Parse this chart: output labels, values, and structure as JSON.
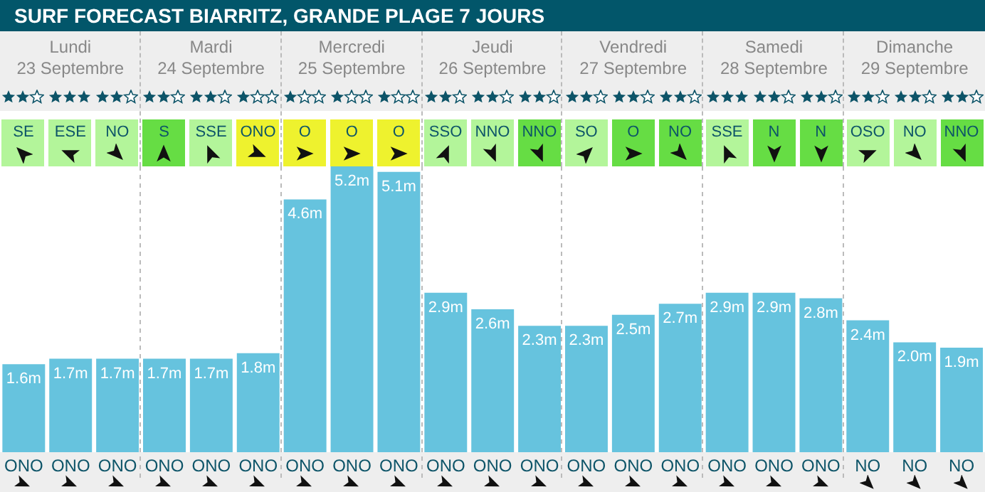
{
  "chart_data": {
    "type": "bar",
    "title": "SURF FORECAST BIARRITZ, GRANDE PLAGE 7 JOURS",
    "categories": [
      "ONO",
      "ONO",
      "ONO",
      "ONO",
      "ONO",
      "ONO",
      "ONO",
      "ONO",
      "ONO",
      "ONO",
      "ONO",
      "ONO",
      "ONO",
      "ONO",
      "ONO",
      "ONO",
      "ONO",
      "ONO",
      "NO",
      "NO",
      "NO"
    ],
    "values": [
      1.6,
      1.7,
      1.7,
      1.7,
      1.7,
      1.8,
      4.6,
      5.2,
      5.1,
      2.9,
      2.6,
      2.3,
      2.3,
      2.5,
      2.7,
      2.9,
      2.9,
      2.8,
      2.4,
      2.0,
      1.9
    ],
    "value_labels": [
      "1.6m",
      "1.7m",
      "1.7m",
      "1.7m",
      "1.7m",
      "1.8m",
      "4.6m",
      "5.2m",
      "5.1m",
      "2.9m",
      "2.6m",
      "2.3m",
      "2.3m",
      "2.5m",
      "2.7m",
      "2.9m",
      "2.9m",
      "2.8m",
      "2.4m",
      "2.0m",
      "1.9m"
    ],
    "color": "#66c3de",
    "annotations": [
      "Lundi",
      "Mardi",
      "Mercredi",
      "Jeudi",
      "Vendredi",
      "Samedi",
      "Dimanche",
      "23 Septembre",
      "24 Septembre",
      "25 Septembre",
      "26 Septembre",
      "27 Septembre",
      "28 Septembre",
      "29 Septembre",
      "SE",
      "ESE",
      "NO",
      "S",
      "SSE",
      "ONO",
      "O",
      "O",
      "O",
      "SSO",
      "NNO",
      "NNO",
      "SO",
      "O",
      "NO",
      "SSE",
      "N",
      "N",
      "OSO",
      "NO",
      "NNO"
    ]
  }
}
